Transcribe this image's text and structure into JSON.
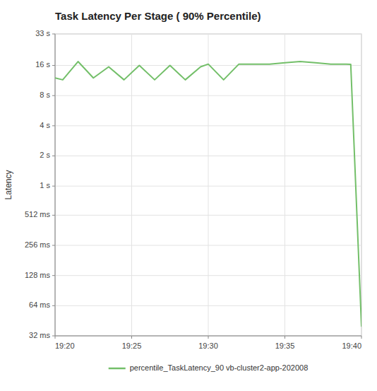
{
  "chart_data": {
    "type": "line",
    "title": "Task Latency Per Stage ( 90% Percentile)",
    "y_label": "Latency",
    "x": [
      0,
      0.5,
      1.5,
      2.5,
      3.5,
      4.5,
      5.5,
      6.5,
      7.5,
      8.5,
      9.5,
      10.0,
      11.0,
      12.0,
      13.0,
      14.0,
      15.0,
      16.0,
      17.0,
      18.0,
      18.9,
      19.0,
      19.3,
      20.0
    ],
    "series": [
      {
        "name": "percentile_TaskLatency_90 vb-cluster2-app-202008",
        "color": "#73bf69",
        "values": [
          12.0,
          11.5,
          17.5,
          12.0,
          15.5,
          11.5,
          16.0,
          11.5,
          16.0,
          11.5,
          15.5,
          16.5,
          11.5,
          16.5,
          16.5,
          16.5,
          17.0,
          17.5,
          17.0,
          16.5,
          16.5,
          16.5,
          16.4,
          0.04
        ]
      }
    ],
    "xlim": [
      0,
      20
    ],
    "ylim": [
      0.032,
      33.0
    ],
    "xticks": [
      {
        "value": 0,
        "label": "19:20"
      },
      {
        "value": 5,
        "label": "19:25"
      },
      {
        "value": 10,
        "label": "19:30"
      },
      {
        "value": 15,
        "label": "19:35"
      },
      {
        "value": 20,
        "label": "19:40"
      }
    ],
    "yticks": [
      {
        "value": 33.0,
        "label": "33 s"
      },
      {
        "value": 16.0,
        "label": "16 s"
      },
      {
        "value": 8.0,
        "label": "8 s"
      },
      {
        "value": 4.0,
        "label": "4 s"
      },
      {
        "value": 2.0,
        "label": "2 s"
      },
      {
        "value": 1.0,
        "label": "1 s"
      },
      {
        "value": 0.512,
        "label": "512 ms"
      },
      {
        "value": 0.256,
        "label": "256 ms"
      },
      {
        "value": 0.128,
        "label": "128 ms"
      },
      {
        "value": 0.064,
        "label": "64 ms"
      },
      {
        "value": 0.032,
        "label": "32 ms"
      }
    ],
    "log": "y",
    "grid": true,
    "legend": "bottom"
  }
}
